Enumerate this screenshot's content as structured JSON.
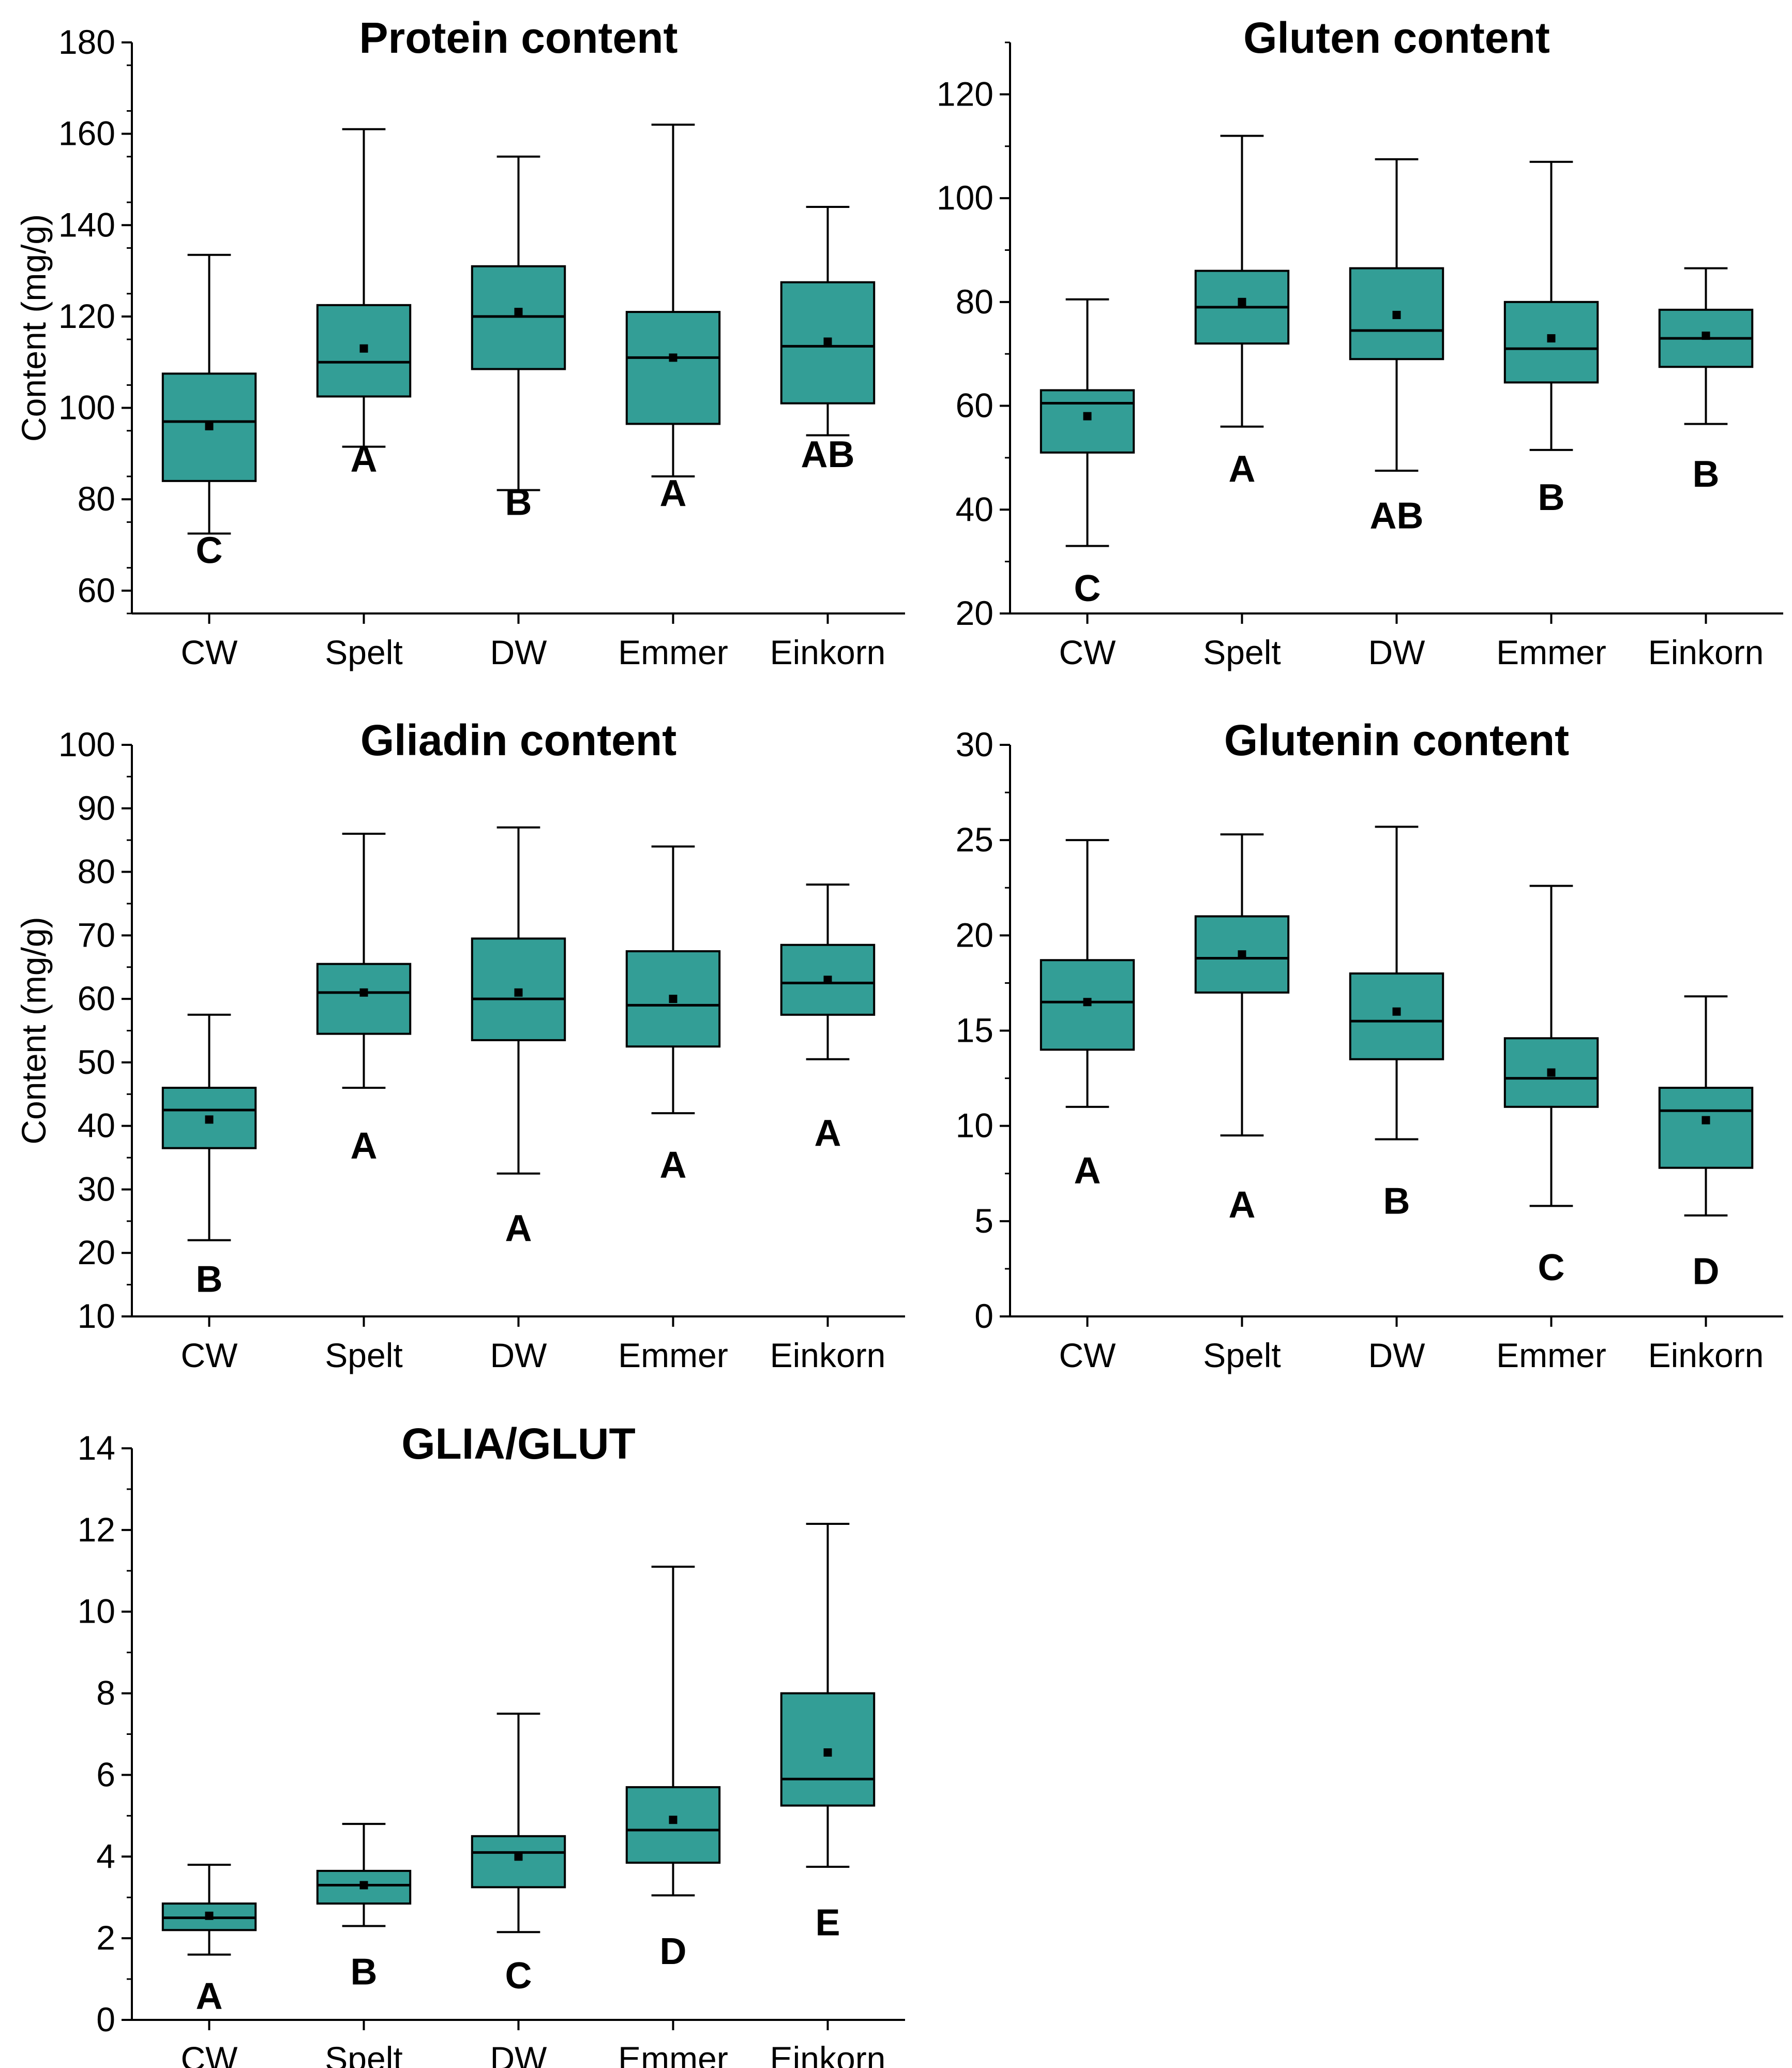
{
  "colors": {
    "box_fill": "#339E96",
    "stroke": "#000000",
    "background": "#ffffff"
  },
  "chart_data": [
    {
      "type": "box",
      "title": "Protein content",
      "ylabel": "Content (mg/g)",
      "xlabel": "",
      "categories": [
        "CW",
        "Spelt",
        "DW",
        "Emmer",
        "Einkorn"
      ],
      "ylim": [
        55,
        180
      ],
      "yticks": [
        60,
        80,
        100,
        120,
        140,
        160,
        180
      ],
      "minor_step": 10,
      "boxes": [
        {
          "min": 72.5,
          "q1": 84,
          "median": 97,
          "q3": 107.5,
          "max": 133.5,
          "mean": 96
        },
        {
          "min": 91.5,
          "q1": 102.5,
          "median": 110,
          "q3": 122.5,
          "max": 161,
          "mean": 113
        },
        {
          "min": 82,
          "q1": 108.5,
          "median": 120,
          "q3": 131,
          "max": 155,
          "mean": 121
        },
        {
          "min": 85,
          "q1": 96.5,
          "median": 111,
          "q3": 121,
          "max": 162,
          "mean": 111
        },
        {
          "min": 94,
          "q1": 101,
          "median": 113.5,
          "q3": 127.5,
          "max": 144,
          "mean": 114.5
        }
      ],
      "letters": [
        "C",
        "A",
        "B",
        "A",
        "AB"
      ],
      "letter_y": [
        69,
        89,
        79.5,
        81.5,
        90
      ]
    },
    {
      "type": "box",
      "title": "Gluten content",
      "ylabel": "",
      "xlabel": "",
      "categories": [
        "CW",
        "Spelt",
        "DW",
        "Emmer",
        "Einkorn"
      ],
      "ylim": [
        20,
        130
      ],
      "yticks": [
        20,
        40,
        60,
        80,
        100,
        120
      ],
      "minor_step": 10,
      "boxes": [
        {
          "min": 33,
          "q1": 51,
          "median": 60.5,
          "q3": 63,
          "max": 80.5,
          "mean": 58
        },
        {
          "min": 56,
          "q1": 72,
          "median": 79,
          "q3": 86,
          "max": 112,
          "mean": 80
        },
        {
          "min": 47.5,
          "q1": 69,
          "median": 74.5,
          "q3": 86.5,
          "max": 107.5,
          "mean": 77.5
        },
        {
          "min": 51.5,
          "q1": 64.5,
          "median": 71,
          "q3": 80,
          "max": 107,
          "mean": 73
        },
        {
          "min": 56.5,
          "q1": 67.5,
          "median": 73,
          "q3": 78.5,
          "max": 86.5,
          "mean": 73.5
        }
      ],
      "letters": [
        "C",
        "A",
        "AB",
        "B",
        "B"
      ],
      "letter_y": [
        25,
        48,
        39,
        42.5,
        47
      ]
    },
    {
      "type": "box",
      "title": "Gliadin content",
      "ylabel": "Content (mg/g)",
      "xlabel": "",
      "categories": [
        "CW",
        "Spelt",
        "DW",
        "Emmer",
        "Einkorn"
      ],
      "ylim": [
        10,
        100
      ],
      "yticks": [
        10,
        20,
        30,
        40,
        50,
        60,
        70,
        80,
        90,
        100
      ],
      "minor_step": 5,
      "boxes": [
        {
          "min": 22,
          "q1": 36.5,
          "median": 42.5,
          "q3": 46,
          "max": 57.5,
          "mean": 41
        },
        {
          "min": 46,
          "q1": 54.5,
          "median": 61,
          "q3": 65.5,
          "max": 86,
          "mean": 61
        },
        {
          "min": 32.5,
          "q1": 53.5,
          "median": 60,
          "q3": 69.5,
          "max": 87,
          "mean": 61
        },
        {
          "min": 42,
          "q1": 52.5,
          "median": 59,
          "q3": 67.5,
          "max": 84,
          "mean": 60
        },
        {
          "min": 50.5,
          "q1": 57.5,
          "median": 62.5,
          "q3": 68.5,
          "max": 78,
          "mean": 63
        }
      ],
      "letters": [
        "B",
        "A",
        "A",
        "A",
        "A"
      ],
      "letter_y": [
        16,
        37,
        24,
        34,
        39
      ]
    },
    {
      "type": "box",
      "title": "Glutenin content",
      "ylabel": "",
      "xlabel": "",
      "categories": [
        "CW",
        "Spelt",
        "DW",
        "Emmer",
        "Einkorn"
      ],
      "ylim": [
        0,
        30
      ],
      "yticks": [
        0,
        5,
        10,
        15,
        20,
        25,
        30
      ],
      "minor_step": 2.5,
      "boxes": [
        {
          "min": 11,
          "q1": 14,
          "median": 16.5,
          "q3": 18.7,
          "max": 25,
          "mean": 16.5
        },
        {
          "min": 9.5,
          "q1": 17,
          "median": 18.8,
          "q3": 21,
          "max": 25.3,
          "mean": 19
        },
        {
          "min": 9.3,
          "q1": 13.5,
          "median": 15.5,
          "q3": 18,
          "max": 25.7,
          "mean": 16
        },
        {
          "min": 5.8,
          "q1": 11,
          "median": 12.5,
          "q3": 14.6,
          "max": 22.6,
          "mean": 12.8
        },
        {
          "min": 5.3,
          "q1": 7.8,
          "median": 10.8,
          "q3": 12,
          "max": 16.8,
          "mean": 10.3
        }
      ],
      "letters": [
        "A",
        "A",
        "B",
        "C",
        "D"
      ],
      "letter_y": [
        7.7,
        5.9,
        6.1,
        2.6,
        2.4
      ]
    },
    {
      "type": "box",
      "title": "GLIA/GLUT",
      "ylabel": "",
      "xlabel": "",
      "categories": [
        "CW",
        "Spelt",
        "DW",
        "Emmer",
        "Einkorn"
      ],
      "ylim": [
        0,
        14
      ],
      "yticks": [
        0,
        2,
        4,
        6,
        8,
        10,
        12,
        14
      ],
      "minor_step": 1,
      "boxes": [
        {
          "min": 1.6,
          "q1": 2.2,
          "median": 2.5,
          "q3": 2.85,
          "max": 3.8,
          "mean": 2.55
        },
        {
          "min": 2.3,
          "q1": 2.85,
          "median": 3.3,
          "q3": 3.65,
          "max": 4.8,
          "mean": 3.3
        },
        {
          "min": 2.15,
          "q1": 3.25,
          "median": 4.1,
          "q3": 4.5,
          "max": 7.5,
          "mean": 4.0
        },
        {
          "min": 3.05,
          "q1": 3.85,
          "median": 4.65,
          "q3": 5.7,
          "max": 11.1,
          "mean": 4.9
        },
        {
          "min": 3.75,
          "q1": 5.25,
          "median": 5.9,
          "q3": 8.0,
          "max": 12.15,
          "mean": 6.55
        }
      ],
      "letters": [
        "A",
        "B",
        "C",
        "D",
        "E"
      ],
      "letter_y": [
        0.6,
        1.2,
        1.1,
        1.7,
        2.4
      ]
    }
  ]
}
